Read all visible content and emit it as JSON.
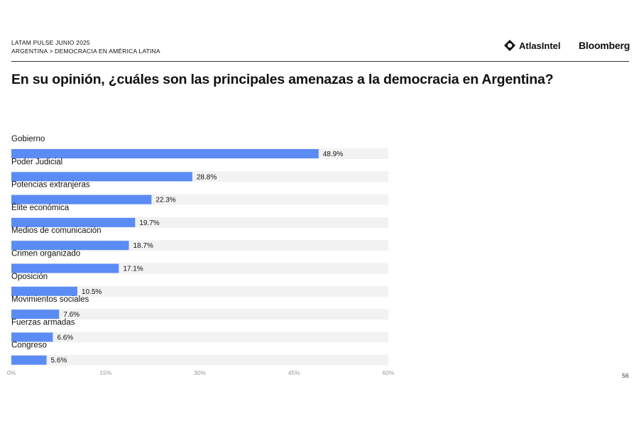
{
  "header": {
    "survey": "LATAM PULSE JUNIO 2025",
    "breadcrumb": "ARGENTINA > DEMOCRACIA EN AMÉRICA LATINA",
    "brand_atlas": "AtlasIntel",
    "brand_bloomberg": "Bloomberg"
  },
  "page_number": "56",
  "colors": {
    "bar": "#5b8cf5",
    "track": "#f2f2f2",
    "axis_text": "#999999"
  },
  "chart_data": {
    "type": "bar",
    "orientation": "horizontal",
    "title": "En su opinión, ¿cuáles son las principales amenazas a la democracia en Argentina?",
    "categories": [
      "Gobierno",
      "Poder Judicial",
      "Potencias extranjeras",
      "Élite económica",
      "Medios de comunicación",
      "Crimen organizado",
      "Oposición",
      "Movimientos sociales",
      "Fuerzas armadas",
      "Congreso"
    ],
    "values": [
      48.9,
      28.8,
      22.3,
      19.7,
      18.7,
      17.1,
      10.5,
      7.6,
      6.6,
      5.6
    ],
    "value_labels": [
      "48.9%",
      "28.8%",
      "22.3%",
      "19.7%",
      "18.7%",
      "17.1%",
      "10.5%",
      "7.6%",
      "6.6%",
      "5.6%"
    ],
    "xlim": [
      0,
      60
    ],
    "ticks": [
      0,
      15,
      30,
      45,
      60
    ],
    "tick_labels": [
      "0%",
      "15%",
      "30%",
      "45%",
      "60%"
    ],
    "grid": false,
    "legend": "none"
  }
}
